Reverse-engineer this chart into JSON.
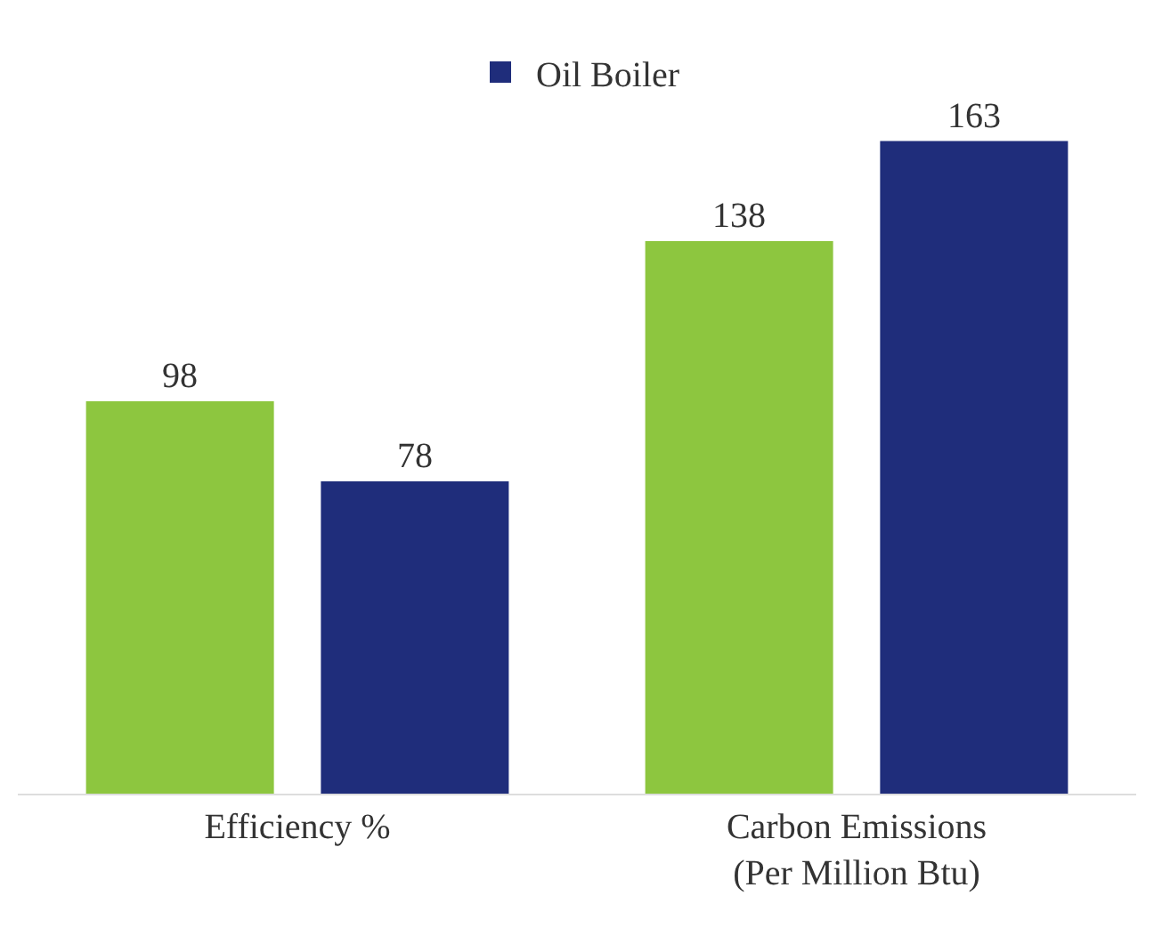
{
  "chart_data": {
    "type": "bar",
    "categories": [
      "Efficiency %",
      "Carbon Emissions\n(Per Million Btu)"
    ],
    "series": [
      {
        "color": "#8dc63f",
        "values": [
          98,
          138
        ]
      },
      {
        "name": "Oil Boiler",
        "color": "#1f2d7b",
        "values": [
          78,
          163
        ]
      }
    ],
    "data_labels": true,
    "legend": "top"
  }
}
